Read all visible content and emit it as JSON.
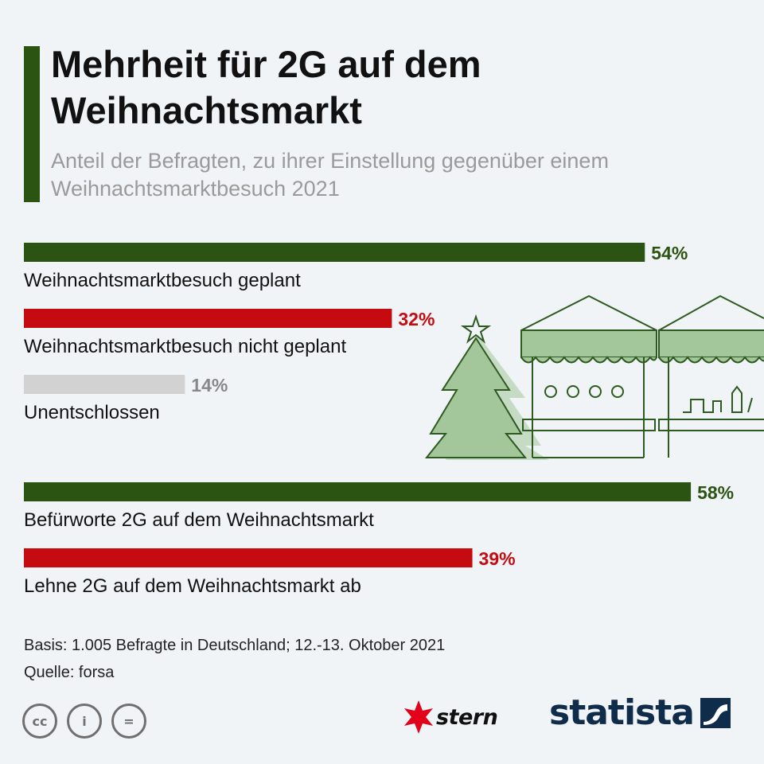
{
  "title": "Mehrheit für 2G auf dem Weihnachtsmarkt",
  "subtitle": "Anteil der Befragten, zu ihrer Einstellung gegenüber einem Weihnachtsmarktbesuch 2021",
  "colors": {
    "green": "#2b5412",
    "red": "#c50b0f",
    "grey": "#d2d2d2",
    "grey_label": "#888888",
    "illustration": "#a3c79a",
    "illustration_stroke": "#2d5a20",
    "accent": "#2b5412"
  },
  "chart_data": {
    "type": "bar",
    "orientation": "horizontal",
    "xlim": [
      0,
      70
    ],
    "unit": "%",
    "categories": [
      "Weihnachtsmarktbesuch geplant",
      "Weihnachtsmarktbesuch nicht geplant",
      "Unentschlossen",
      "Befürworte 2G auf dem Weihnachtsmarkt",
      "Lehne 2G auf dem Weihnachtsmarkt ab"
    ],
    "values": [
      54,
      32,
      14,
      58,
      39
    ],
    "value_labels": [
      "54%",
      "32%",
      "14%",
      "58%",
      "39%"
    ],
    "bar_colors": [
      "#2b5412",
      "#c50b0f",
      "#d2d2d2",
      "#2b5412",
      "#c50b0f"
    ],
    "label_colors": [
      "#2b5412",
      "#c50b0f",
      "#888888",
      "#2b5412",
      "#c50b0f"
    ]
  },
  "footer": {
    "basis": "Basis: 1.005 Befragte in Deutschland; 12.-13. Oktober 2021",
    "source": "Quelle: forsa"
  },
  "license_icons": [
    {
      "icon": "cc-icon",
      "glyph": "cc"
    },
    {
      "icon": "attribution-icon",
      "glyph": "i"
    },
    {
      "icon": "no-derivatives-icon",
      "glyph": "="
    }
  ],
  "logos": {
    "stern": "stern",
    "statista": "statista"
  }
}
